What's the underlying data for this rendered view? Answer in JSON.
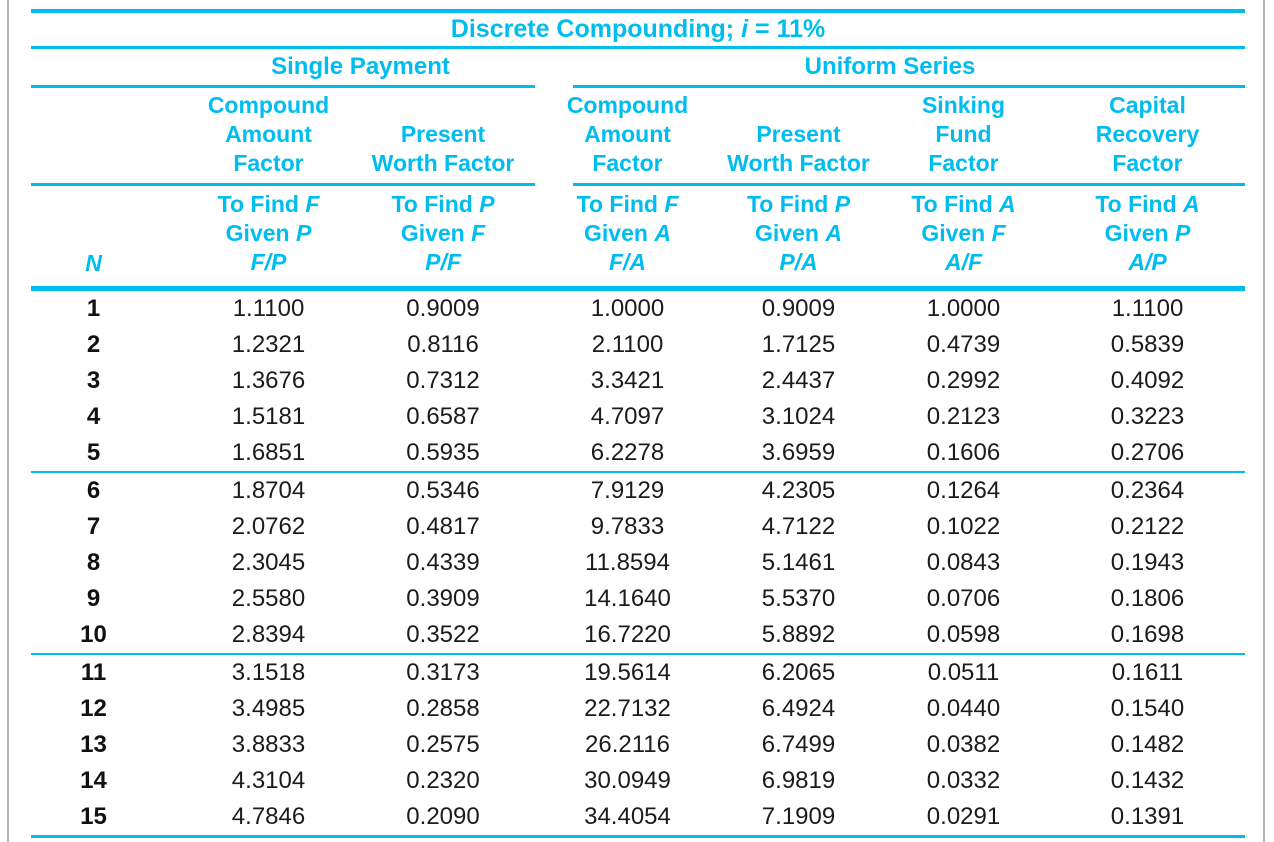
{
  "colors": {
    "accent": "#00bdf0",
    "frame": "#b3b3b3",
    "ink": "#1b1b1b"
  },
  "table": {
    "title": {
      "prefix": "Discrete Compounding; ",
      "var": "i",
      "suffix": " = 11%"
    },
    "groups": [
      {
        "label": "Single Payment"
      },
      {
        "label": "Uniform Series"
      }
    ],
    "n_header": "N",
    "columns": [
      {
        "group": "single",
        "title_lines": [
          "Compound",
          "Amount",
          "Factor"
        ],
        "find_prefix": "To Find",
        "find_var": "F",
        "given_prefix": "Given",
        "given_var": "P",
        "symbol": "F/P"
      },
      {
        "group": "single",
        "title_lines": [
          "Present",
          "Worth Factor"
        ],
        "find_prefix": "To Find",
        "find_var": "P",
        "given_prefix": "Given",
        "given_var": "F",
        "symbol": "P/F"
      },
      {
        "group": "uniform",
        "title_lines": [
          "Compound",
          "Amount",
          "Factor"
        ],
        "find_prefix": "To Find",
        "find_var": "F",
        "given_prefix": "Given",
        "given_var": "A",
        "symbol": "F/A"
      },
      {
        "group": "uniform",
        "title_lines": [
          "Present",
          "Worth Factor"
        ],
        "find_prefix": "To Find",
        "find_var": "P",
        "given_prefix": "Given",
        "given_var": "A",
        "symbol": "P/A"
      },
      {
        "group": "uniform",
        "title_lines": [
          "Sinking",
          "Fund",
          "Factor"
        ],
        "find_prefix": "To Find",
        "find_var": "A",
        "given_prefix": "Given",
        "given_var": "F",
        "symbol": "A/F"
      },
      {
        "group": "uniform",
        "title_lines": [
          "Capital",
          "Recovery",
          "Factor"
        ],
        "find_prefix": "To Find",
        "find_var": "A",
        "given_prefix": "Given",
        "given_var": "P",
        "symbol": "A/P"
      }
    ],
    "row_groups": [
      {
        "rows": [
          {
            "n": "1",
            "values": [
              "1.1100",
              "0.9009",
              "1.0000",
              "0.9009",
              "1.0000",
              "1.1100"
            ]
          },
          {
            "n": "2",
            "values": [
              "1.2321",
              "0.8116",
              "2.1100",
              "1.7125",
              "0.4739",
              "0.5839"
            ]
          },
          {
            "n": "3",
            "values": [
              "1.3676",
              "0.7312",
              "3.3421",
              "2.4437",
              "0.2992",
              "0.4092"
            ]
          },
          {
            "n": "4",
            "values": [
              "1.5181",
              "0.6587",
              "4.7097",
              "3.1024",
              "0.2123",
              "0.3223"
            ]
          },
          {
            "n": "5",
            "values": [
              "1.6851",
              "0.5935",
              "6.2278",
              "3.6959",
              "0.1606",
              "0.2706"
            ]
          }
        ]
      },
      {
        "rows": [
          {
            "n": "6",
            "values": [
              "1.8704",
              "0.5346",
              "7.9129",
              "4.2305",
              "0.1264",
              "0.2364"
            ]
          },
          {
            "n": "7",
            "values": [
              "2.0762",
              "0.4817",
              "9.7833",
              "4.7122",
              "0.1022",
              "0.2122"
            ]
          },
          {
            "n": "8",
            "values": [
              "2.3045",
              "0.4339",
              "11.8594",
              "5.1461",
              "0.0843",
              "0.1943"
            ]
          },
          {
            "n": "9",
            "values": [
              "2.5580",
              "0.3909",
              "14.1640",
              "5.5370",
              "0.0706",
              "0.1806"
            ]
          },
          {
            "n": "10",
            "values": [
              "2.8394",
              "0.3522",
              "16.7220",
              "5.8892",
              "0.0598",
              "0.1698"
            ]
          }
        ]
      },
      {
        "rows": [
          {
            "n": "11",
            "values": [
              "3.1518",
              "0.3173",
              "19.5614",
              "6.2065",
              "0.0511",
              "0.1611"
            ]
          },
          {
            "n": "12",
            "values": [
              "3.4985",
              "0.2858",
              "22.7132",
              "6.4924",
              "0.0440",
              "0.1540"
            ]
          },
          {
            "n": "13",
            "values": [
              "3.8833",
              "0.2575",
              "26.2116",
              "6.7499",
              "0.0382",
              "0.1482"
            ]
          },
          {
            "n": "14",
            "values": [
              "4.3104",
              "0.2320",
              "30.0949",
              "6.9819",
              "0.0332",
              "0.1432"
            ]
          },
          {
            "n": "15",
            "values": [
              "4.7846",
              "0.2090",
              "34.4054",
              "7.1909",
              "0.0291",
              "0.1391"
            ]
          }
        ]
      }
    ]
  }
}
